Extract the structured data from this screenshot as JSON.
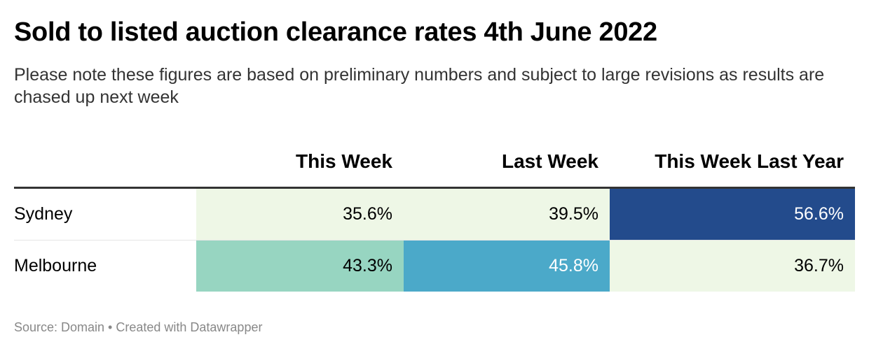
{
  "title": "Sold to listed auction clearance rates 4th June 2022",
  "subtitle": "Please note these figures are based on preliminary numbers and subject to large revisions as results are chased up next week",
  "footer": "Source: Domain • Created with Datawrapper",
  "colors": {
    "light": "#eef7e6",
    "mint": "#97d5c1",
    "sky": "#4ba9c9",
    "navy": "#234b8c"
  },
  "chart_data": {
    "type": "table",
    "columns": [
      "",
      "This Week",
      "Last Week",
      "This Week Last Year"
    ],
    "rows": [
      {
        "label": "Sydney",
        "values": [
          "35.6%",
          "39.5%",
          "56.6%"
        ],
        "numeric": [
          35.6,
          39.5,
          56.6
        ],
        "colors": [
          "#eef7e6",
          "#eef7e6",
          "#234b8c"
        ],
        "text_colors": [
          "#000000",
          "#000000",
          "#ffffff"
        ]
      },
      {
        "label": "Melbourne",
        "values": [
          "43.3%",
          "45.8%",
          "36.7%"
        ],
        "numeric": [
          43.3,
          45.8,
          36.7
        ],
        "colors": [
          "#97d5c1",
          "#4ba9c9",
          "#eef7e6"
        ],
        "text_colors": [
          "#000000",
          "#ffffff",
          "#000000"
        ]
      }
    ]
  }
}
